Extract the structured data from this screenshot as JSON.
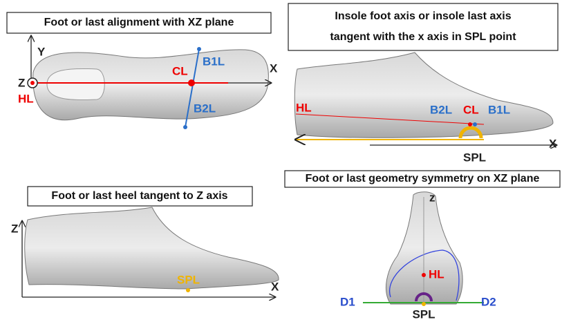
{
  "panels": [
    {
      "title": "Foot or last alignment with XZ plane",
      "labels": [
        "Y",
        "X",
        "Z",
        "HL",
        "CL",
        "B1L",
        "B2L"
      ]
    },
    {
      "title_lines": [
        "Insole foot axis or insole last axis",
        "tangent with the x axis in SPL point"
      ],
      "labels": [
        "HL",
        "B2L",
        "CL",
        "B1L",
        "X",
        "SPL"
      ]
    },
    {
      "title": "Foot or last heel tangent to Z axis",
      "labels": [
        "Z",
        "X",
        "SPL"
      ]
    },
    {
      "title": "Foot or last geometry symmetry on XZ plane",
      "labels": [
        "z",
        "HL",
        "D1",
        "D2",
        "SPL"
      ]
    }
  ]
}
